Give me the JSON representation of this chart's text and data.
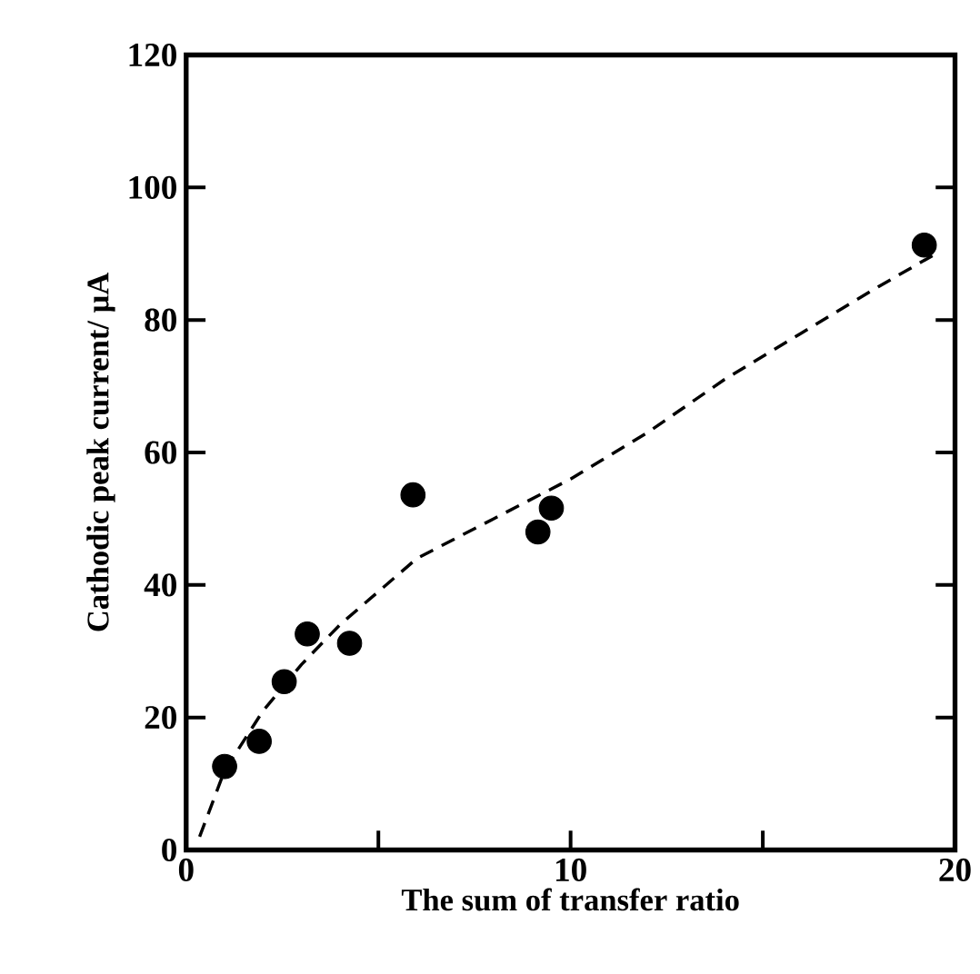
{
  "chart_data": {
    "type": "scatter",
    "xlabel": "The sum of transfer ratio",
    "ylabel": "Cathodic peak current/ μA",
    "xlim": [
      0,
      20
    ],
    "ylim": [
      0,
      120
    ],
    "xticks": [
      0,
      {
        "value": 5,
        "label": null
      },
      10,
      {
        "value": 15,
        "label": null
      },
      20
    ],
    "yticks": [
      0,
      20,
      40,
      60,
      80,
      100,
      120
    ],
    "grid": false,
    "legend": false,
    "series": [
      {
        "marker": "circle",
        "color": "#000000",
        "x": [
          1.0,
          1.9,
          2.55,
          3.15,
          4.25,
          5.9,
          9.15,
          9.5,
          19.2
        ],
        "values": [
          12.6,
          16.4,
          25.4,
          32.6,
          31.2,
          53.6,
          48.0,
          51.6,
          91.3
        ]
      },
      {
        "type": "line",
        "marker": "none",
        "line_style": "dashed",
        "color": "#000000",
        "x": [
          0.35,
          1,
          2,
          3,
          4,
          5,
          6,
          8,
          10,
          12,
          14,
          16,
          18,
          19.5
        ],
        "values": [
          2,
          12,
          21,
          28,
          34,
          39,
          44,
          50,
          56,
          63,
          71,
          78,
          85,
          90
        ]
      }
    ]
  }
}
